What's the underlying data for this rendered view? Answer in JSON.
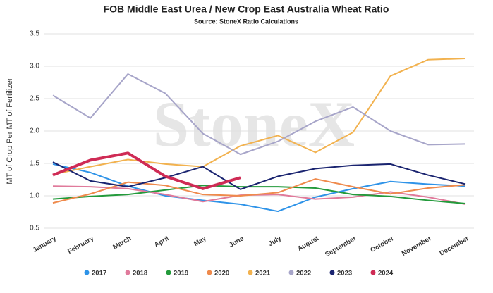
{
  "chart_data": {
    "type": "line",
    "title": "FOB Middle East Urea / New Crop East Australia Wheat Ratio",
    "subtitle": "Source: StoneX Ratio Calculations",
    "y_label": "MT of Crop Per MT of Fertilizer",
    "watermark": "StoneX",
    "categories": [
      "January",
      "February",
      "March",
      "April",
      "May",
      "June",
      "July",
      "August",
      "September",
      "October",
      "November",
      "December"
    ],
    "ylim": [
      0.5,
      3.5
    ],
    "yticks": [
      0.5,
      {
        "value": 1,
        "label": "1.0"
      },
      1.5,
      {
        "value": 2,
        "label": "2.0"
      },
      2.5,
      {
        "value": 3,
        "label": "3.0"
      },
      3.5
    ],
    "grid": true,
    "legend": "bottom",
    "series": [
      {
        "name": "2017",
        "color": "#2e93e8",
        "values": [
          1.49,
          1.36,
          1.15,
          1.0,
          0.93,
          0.87,
          0.76,
          0.98,
          1.11,
          1.22,
          1.18,
          1.15
        ]
      },
      {
        "name": "2018",
        "color": "#e07a9b",
        "values": [
          1.15,
          1.14,
          1.11,
          1.02,
          0.91,
          1.01,
          1.02,
          0.95,
          0.98,
          1.06,
          0.98,
          0.87
        ]
      },
      {
        "name": "2019",
        "color": "#239a3b",
        "values": [
          0.95,
          0.99,
          1.02,
          1.09,
          1.16,
          1.14,
          1.14,
          1.12,
          1.02,
          0.99,
          0.93,
          0.88
        ]
      },
      {
        "name": "2020",
        "color": "#ef8a4c",
        "values": [
          0.89,
          1.03,
          1.21,
          1.16,
          1.02,
          1.0,
          1.05,
          1.26,
          1.14,
          1.03,
          1.12,
          1.17
        ]
      },
      {
        "name": "2021",
        "color": "#f2b24f",
        "values": [
          1.33,
          1.45,
          1.56,
          1.49,
          1.45,
          1.77,
          1.93,
          1.67,
          1.98,
          2.85,
          3.1,
          3.12
        ]
      },
      {
        "name": "2022",
        "color": "#a7a5c9",
        "values": [
          2.55,
          2.2,
          2.88,
          2.58,
          1.96,
          1.64,
          1.84,
          2.15,
          2.37,
          2.0,
          1.79,
          1.8
        ]
      },
      {
        "name": "2023",
        "color": "#1a2470",
        "values": [
          1.52,
          1.23,
          1.14,
          1.28,
          1.45,
          1.1,
          1.3,
          1.42,
          1.47,
          1.49,
          1.32,
          1.18
        ]
      },
      {
        "name": "2024",
        "color": "#cf2b55",
        "values": [
          1.32,
          1.55,
          1.66,
          1.3,
          1.11,
          1.28,
          null,
          null,
          null,
          null,
          null,
          null
        ]
      }
    ]
  }
}
